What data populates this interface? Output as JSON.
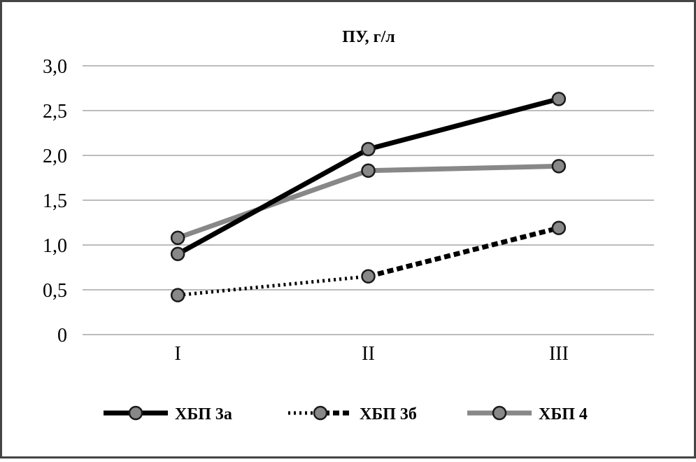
{
  "chart_data": {
    "type": "line",
    "title": "ПУ, г/л",
    "xlabel": "",
    "ylabel": "",
    "categories": [
      "I",
      "II",
      "III"
    ],
    "ylim": [
      0,
      3.0
    ],
    "yticks": [
      0,
      0.5,
      1.0,
      1.5,
      2.0,
      2.5,
      3.0
    ],
    "ytick_labels": [
      "0",
      "0,5",
      "1,0",
      "1,5",
      "2,0",
      "2,5",
      "3,0"
    ],
    "grid": true,
    "legend_position": "bottom",
    "series": [
      {
        "name": "ХБП 3а",
        "values": [
          0.9,
          2.07,
          2.63
        ],
        "color": "#000000",
        "line_style": "solid",
        "marker_color": "#888888"
      },
      {
        "name": "ХБП 3б",
        "values": [
          0.44,
          0.65,
          1.19
        ],
        "color": "#000000",
        "line_style": "dotted-to-dashed",
        "marker_color": "#888888"
      },
      {
        "name": "ХБП 4",
        "values": [
          1.08,
          1.83,
          1.88
        ],
        "color": "#888888",
        "line_style": "solid",
        "marker_color": "#888888"
      }
    ]
  }
}
